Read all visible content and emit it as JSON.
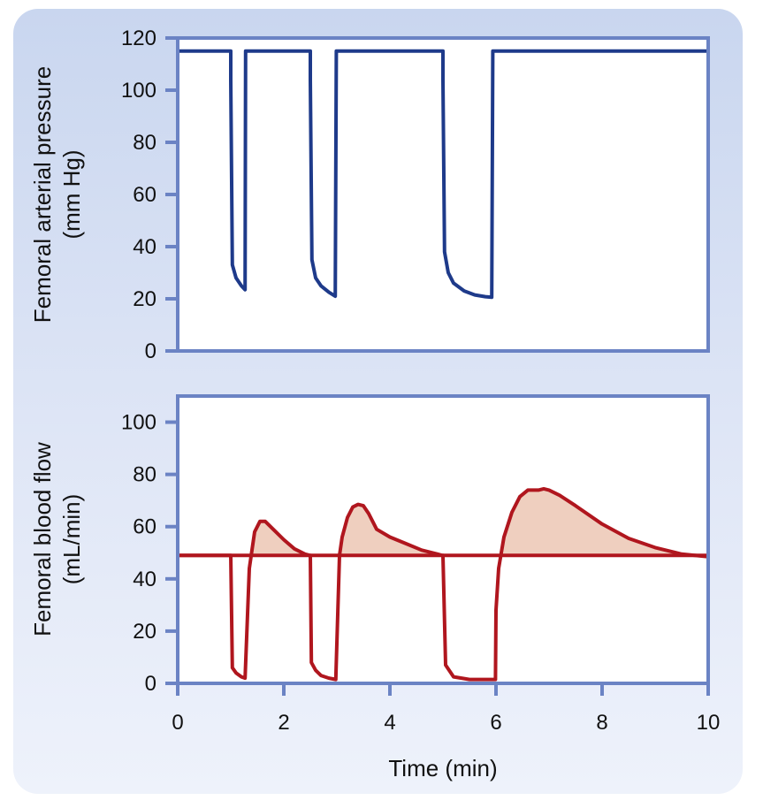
{
  "chart_data": [
    {
      "type": "line",
      "id": "pressure",
      "ylabel_line1": "Femoral arterial pressure",
      "ylabel_line2": "(mm Hg)",
      "xlabel": "",
      "xlim": [
        0,
        10
      ],
      "ylim": [
        0,
        120
      ],
      "yticks": [
        "0",
        "20",
        "40",
        "60",
        "80",
        "100",
        "120"
      ],
      "series": [
        {
          "name": "Femoral arterial pressure",
          "color": "#1e3a8a",
          "x": [
            0,
            1.0,
            1.0,
            1.03,
            1.1,
            1.2,
            1.27,
            1.28,
            1.3,
            2.5,
            2.5,
            2.53,
            2.6,
            2.7,
            2.85,
            2.97,
            2.99,
            3.02,
            5.0,
            5.0,
            5.03,
            5.1,
            5.2,
            5.4,
            5.6,
            5.8,
            5.92,
            5.94,
            5.96,
            10.0
          ],
          "y": [
            115,
            115,
            104,
            33,
            28,
            25,
            23.5,
            115,
            115,
            115,
            104,
            35,
            28,
            25,
            22.5,
            21,
            115,
            115,
            115,
            104,
            38,
            30,
            26,
            23,
            21.5,
            20.8,
            20.6,
            115,
            115,
            115
          ]
        }
      ]
    },
    {
      "type": "area",
      "id": "flow",
      "ylabel_line1": "Femoral blood flow",
      "ylabel_line2": "(mL/min)",
      "xlabel": "Time (min)",
      "xlim": [
        0,
        10
      ],
      "ylim": [
        0,
        110
      ],
      "yticks": [
        "0",
        "20",
        "40",
        "60",
        "80",
        "100"
      ],
      "xticks": [
        "0",
        "2",
        "4",
        "6",
        "8",
        "10"
      ],
      "baseline": 49,
      "series": [
        {
          "name": "Femoral blood flow",
          "color": "#b0161e",
          "fill": "#efcfbf",
          "x": [
            0,
            1.0,
            1.0,
            1.03,
            1.1,
            1.2,
            1.27,
            1.35,
            1.45,
            1.55,
            1.65,
            1.8,
            2.0,
            2.2,
            2.4,
            2.49,
            2.5,
            2.52,
            2.6,
            2.7,
            2.85,
            2.98,
            3.05,
            3.1,
            3.2,
            3.3,
            3.4,
            3.5,
            3.6,
            3.75,
            4.0,
            4.3,
            4.6,
            4.9,
            4.98,
            5.0,
            5.05,
            5.2,
            5.5,
            5.8,
            5.98,
            5.99,
            6.0,
            6.05,
            6.15,
            6.3,
            6.45,
            6.6,
            6.8,
            6.9,
            7.0,
            7.2,
            7.5,
            8.0,
            8.5,
            9.0,
            9.5,
            10.0
          ],
          "y": [
            49,
            49,
            49,
            6,
            4,
            2.5,
            2,
            44,
            58,
            62,
            62,
            59,
            55,
            51.5,
            49.5,
            49,
            49,
            8,
            5,
            3,
            2,
            1.5,
            49,
            56,
            63.5,
            67.5,
            68.5,
            68,
            65,
            59,
            56,
            53.5,
            51,
            49.5,
            49,
            49,
            7,
            2.5,
            1.5,
            1.5,
            1.5,
            1.5,
            28,
            44,
            56,
            65.5,
            71.5,
            74,
            74,
            74.5,
            74,
            72,
            68,
            61,
            55.5,
            52,
            49.5,
            48.5
          ]
        }
      ]
    }
  ]
}
